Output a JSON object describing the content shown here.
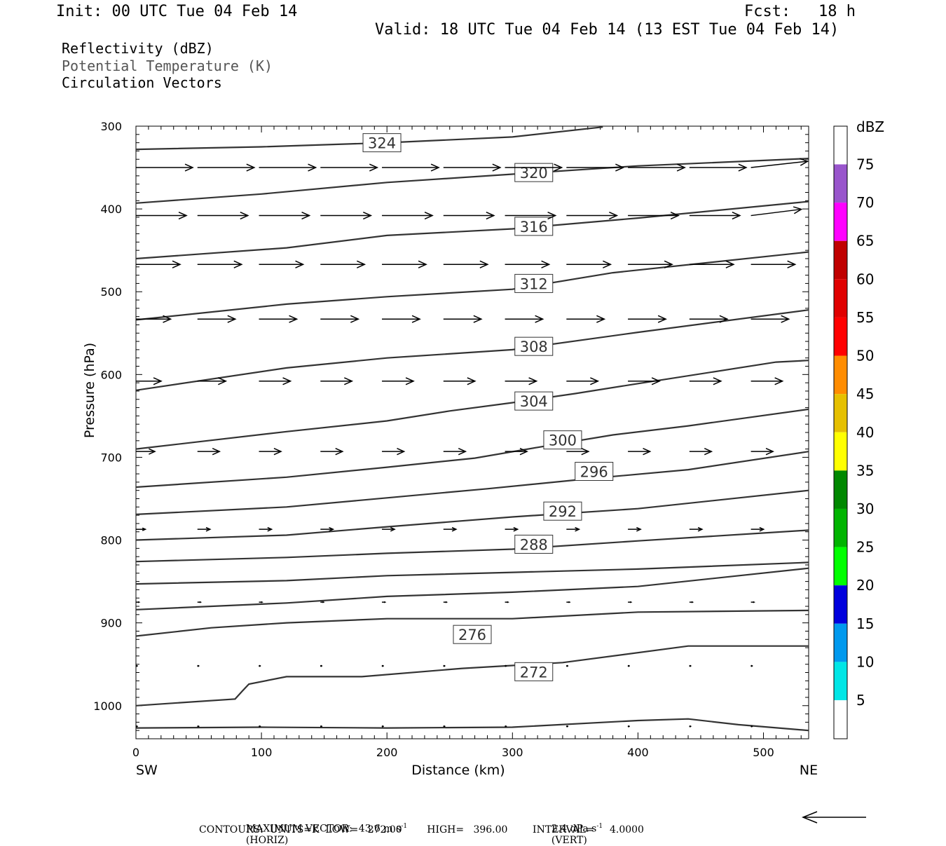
{
  "header": {
    "init": "Init: 00 UTC Tue 04 Feb 14",
    "fcst": "Fcst:   18 h",
    "valid": "Valid: 18 UTC Tue 04 Feb 14 (13 EST Tue 04 Feb 14)"
  },
  "fields": [
    {
      "label": "Reflectivity (dBZ)"
    },
    {
      "label": "Potential Temperature (K)"
    },
    {
      "label": "Circulation Vectors"
    }
  ],
  "footer": {
    "max_vector": "MAXIMUM VECTOR:  43.6 m s",
    "horiz": "(HORIZ)",
    "vert_val": "2.4 dPa s",
    "vert": "(VERT)",
    "exp": "-1",
    "contours": "CONTOURS:  UNITS=K  LOW=   272.00        HIGH=   396.00        INTERVAL=     4.0000"
  },
  "colors": {
    "contour": "#333333",
    "vector": "#000000",
    "frame": "#000000"
  },
  "chart_data": {
    "type": "line",
    "xlabel": "Distance (km)",
    "ylabel": "Pressure (hPa)",
    "xlim": [
      0,
      536
    ],
    "ylim": [
      1040,
      300
    ],
    "x_ticks": [
      0,
      100,
      200,
      300,
      400,
      500
    ],
    "y_ticks": [
      300,
      400,
      500,
      600,
      700,
      800,
      900,
      1000
    ],
    "left_end_label": "SW",
    "right_end_label": "NE",
    "series": [
      {
        "level": "324",
        "label_at": [
          196,
          320
        ],
        "points": [
          [
            0,
            328
          ],
          [
            100,
            325
          ],
          [
            200,
            320
          ],
          [
            300,
            313
          ],
          [
            372,
            301
          ]
        ]
      },
      {
        "level": "320",
        "label_at": [
          317,
          356
        ],
        "points": [
          [
            0,
            393
          ],
          [
            100,
            382
          ],
          [
            200,
            368
          ],
          [
            300,
            358
          ],
          [
            400,
            348
          ],
          [
            536,
            339
          ]
        ]
      },
      {
        "level": "316",
        "label_at": [
          317,
          421
        ],
        "points": [
          [
            0,
            460
          ],
          [
            120,
            447
          ],
          [
            200,
            432
          ],
          [
            300,
            424
          ],
          [
            400,
            411
          ],
          [
            536,
            391
          ]
        ]
      },
      {
        "level": "312",
        "label_at": [
          317,
          490
        ],
        "points": [
          [
            0,
            534
          ],
          [
            120,
            515
          ],
          [
            200,
            506
          ],
          [
            300,
            497
          ],
          [
            380,
            477
          ],
          [
            536,
            452
          ]
        ]
      },
      {
        "level": "308",
        "label_at": [
          317,
          566
        ],
        "points": [
          [
            0,
            619
          ],
          [
            120,
            592
          ],
          [
            200,
            580
          ],
          [
            300,
            570
          ],
          [
            400,
            549
          ],
          [
            536,
            522
          ]
        ]
      },
      {
        "level": "304",
        "label_at": [
          317,
          632
        ],
        "points": [
          [
            0,
            690
          ],
          [
            120,
            669
          ],
          [
            200,
            656
          ],
          [
            250,
            644
          ],
          [
            300,
            634
          ],
          [
            350,
            623
          ],
          [
            400,
            611
          ],
          [
            510,
            585
          ],
          [
            536,
            583
          ]
        ]
      },
      {
        "level": "300",
        "label_at": [
          340,
          679
        ],
        "points": [
          [
            0,
            736
          ],
          [
            120,
            724
          ],
          [
            200,
            712
          ],
          [
            270,
            701
          ],
          [
            320,
            688
          ],
          [
            380,
            673
          ],
          [
            440,
            662
          ],
          [
            536,
            642
          ]
        ]
      },
      {
        "level": "296",
        "label_at": [
          365,
          717
        ],
        "points": [
          [
            0,
            769
          ],
          [
            120,
            760
          ],
          [
            200,
            749
          ],
          [
            280,
            738
          ],
          [
            360,
            726
          ],
          [
            440,
            715
          ],
          [
            536,
            693
          ]
        ]
      },
      {
        "level": "292",
        "label_at": [
          340,
          765
        ],
        "points": [
          [
            0,
            800
          ],
          [
            120,
            794
          ],
          [
            200,
            784
          ],
          [
            300,
            772
          ],
          [
            400,
            762
          ],
          [
            536,
            740
          ]
        ]
      },
      {
        "level": "288",
        "label_at": [
          317,
          805
        ],
        "points": [
          [
            0,
            826
          ],
          [
            120,
            821
          ],
          [
            200,
            816
          ],
          [
            300,
            811
          ],
          [
            400,
            801
          ],
          [
            536,
            788
          ]
        ]
      },
      {
        "level": "284",
        "label_at": null,
        "points": [
          [
            0,
            853
          ],
          [
            120,
            849
          ],
          [
            200,
            843
          ],
          [
            300,
            839
          ],
          [
            400,
            835
          ],
          [
            536,
            827
          ]
        ]
      },
      {
        "level": "280",
        "label_at": null,
        "points": [
          [
            0,
            884
          ],
          [
            120,
            876
          ],
          [
            200,
            868
          ],
          [
            300,
            863
          ],
          [
            400,
            856
          ],
          [
            536,
            834
          ]
        ]
      },
      {
        "level": "276",
        "label_at": [
          268,
          914
        ],
        "points": [
          [
            0,
            916
          ],
          [
            60,
            906
          ],
          [
            120,
            900
          ],
          [
            200,
            895
          ],
          [
            300,
            895
          ],
          [
            400,
            887
          ],
          [
            536,
            885
          ]
        ]
      },
      {
        "level": "272",
        "label_at": [
          317,
          959
        ],
        "points": [
          [
            0,
            1000
          ],
          [
            79,
            992
          ],
          [
            85,
            982
          ],
          [
            90,
            974
          ],
          [
            120,
            965
          ],
          [
            180,
            965
          ],
          [
            260,
            955
          ],
          [
            340,
            948
          ],
          [
            440,
            928
          ],
          [
            536,
            928
          ]
        ]
      },
      {
        "level": "272",
        "label_at": null,
        "points": [
          [
            0,
            1027
          ],
          [
            100,
            1026
          ],
          [
            200,
            1027
          ],
          [
            300,
            1026
          ],
          [
            400,
            1018
          ],
          [
            440,
            1016
          ],
          [
            480,
            1023
          ],
          [
            536,
            1030
          ]
        ]
      }
    ],
    "vectors": [
      {
        "p": 350,
        "u": [
          0.9,
          0.9,
          0.9,
          0.9,
          0.9,
          0.9,
          0.9,
          0.9,
          0.9,
          0.9,
          0.9,
          0.9
        ],
        "w": [
          0,
          0,
          0,
          0,
          0,
          0,
          0,
          0,
          0,
          0,
          -0.1,
          -0.1
        ]
      },
      {
        "p": 408,
        "u": [
          0.8,
          0.8,
          0.8,
          0.8,
          0.8,
          0.8,
          0.8,
          0.8,
          0.8,
          0.8,
          0.8,
          0.8
        ],
        "w": [
          0,
          0,
          0,
          0,
          0,
          0,
          0,
          0,
          0,
          0,
          -0.1,
          0
        ]
      },
      {
        "p": 467,
        "u": [
          0.7,
          0.7,
          0.7,
          0.7,
          0.7,
          0.7,
          0.7,
          0.7,
          0.7,
          0.7,
          0.7,
          0.7
        ],
        "w": [
          0,
          0,
          0,
          0,
          0,
          0,
          0,
          0,
          0,
          0,
          0,
          0
        ]
      },
      {
        "p": 533,
        "u": [
          0.55,
          0.6,
          0.6,
          0.6,
          0.6,
          0.6,
          0.6,
          0.6,
          0.6,
          0.6,
          0.6,
          0.6
        ],
        "w": [
          0,
          0,
          0,
          0,
          0,
          0,
          0,
          0,
          0,
          0,
          0,
          0
        ]
      },
      {
        "p": 608,
        "u": [
          0.4,
          0.45,
          0.5,
          0.5,
          0.5,
          0.5,
          0.5,
          0.5,
          0.5,
          0.5,
          0.5,
          0.5
        ],
        "w": [
          0,
          0,
          0,
          0,
          0,
          0,
          0,
          0,
          0,
          0,
          0,
          0
        ]
      },
      {
        "p": 693,
        "u": [
          0.3,
          0.35,
          0.35,
          0.35,
          0.35,
          0.35,
          0.35,
          0.35,
          0.35,
          0.35,
          0.35,
          0.35
        ],
        "w": [
          0,
          0,
          0,
          0,
          0,
          0,
          0,
          0,
          0,
          0,
          0,
          0
        ]
      },
      {
        "p": 787,
        "u": [
          0.15,
          0.2,
          0.2,
          0.2,
          0.2,
          0.2,
          0.2,
          0.2,
          0.2,
          0.2,
          0.2,
          0.2
        ],
        "w": [
          0,
          0,
          0,
          0,
          0,
          0,
          0,
          0,
          0,
          0,
          0,
          0
        ]
      },
      {
        "p": 875,
        "u": [
          0.05,
          0.05,
          0.05,
          0.05,
          0.05,
          0.05,
          0.05,
          0.05,
          0.05,
          0.05,
          0.05,
          0.05
        ],
        "w": [
          0,
          0,
          0,
          0,
          0,
          0,
          0,
          0,
          0,
          0,
          0,
          0
        ]
      },
      {
        "p": 952,
        "u": [
          0.03,
          0.03,
          0.03,
          0.03,
          0.03,
          0.03,
          0.03,
          0.03,
          0.03,
          0.03,
          0.03,
          0.03
        ],
        "w": [
          0,
          0,
          0,
          0,
          0,
          0,
          0,
          0,
          0,
          0,
          0,
          0
        ]
      },
      {
        "p": 1025,
        "u": [
          0.03,
          0.03,
          0.03,
          0.03,
          0.03,
          0.03,
          0.03,
          0.03,
          0.03,
          0.03,
          0.03,
          0.03
        ],
        "w": [
          0,
          0,
          0,
          0,
          0,
          0,
          0,
          0,
          0,
          0,
          0,
          0
        ]
      }
    ],
    "vector_x_km": [
      0,
      49,
      98,
      147,
      196,
      245,
      294,
      343,
      392,
      441,
      490,
      536
    ],
    "colorbar": {
      "unit": "dBZ",
      "labels": [
        "75",
        "70",
        "65",
        "60",
        "55",
        "50",
        "45",
        "40",
        "35",
        "30",
        "25",
        "20",
        "15",
        "10",
        "5"
      ],
      "colors": [
        "#ffffff",
        "#9955cc",
        "#ff00ff",
        "#c00000",
        "#e00000",
        "#ff0000",
        "#ff8c00",
        "#e6c000",
        "#ffff00",
        "#008800",
        "#00b400",
        "#00ff00",
        "#0000dd",
        "#0099ee",
        "#00e6e6",
        "#ffffff"
      ]
    }
  }
}
